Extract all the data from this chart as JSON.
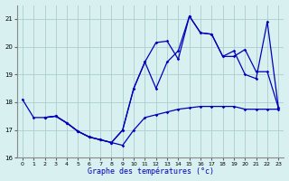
{
  "xlabel": "Graphe des températures (°c)",
  "background_color": "#d8f0f0",
  "grid_color": "#aacece",
  "line_color": "#0000bb",
  "xlim": [
    -0.5,
    23.5
  ],
  "ylim": [
    16,
    21.5
  ],
  "yticks": [
    16,
    17,
    18,
    19,
    20,
    21
  ],
  "xticks": [
    0,
    1,
    2,
    3,
    4,
    5,
    6,
    7,
    8,
    9,
    10,
    11,
    12,
    13,
    14,
    15,
    16,
    17,
    18,
    19,
    20,
    21,
    22,
    23
  ],
  "s1_x": [
    0,
    1,
    2,
    3,
    4,
    5,
    6,
    7,
    8,
    9,
    10,
    11,
    12,
    13,
    14,
    15,
    16,
    17,
    18,
    19,
    20,
    21,
    22,
    23
  ],
  "s1_y": [
    18.1,
    17.45,
    17.45,
    17.5,
    17.25,
    16.95,
    16.75,
    16.65,
    16.55,
    16.45,
    17.0,
    17.45,
    17.55,
    17.65,
    17.75,
    17.8,
    17.85,
    17.85,
    17.85,
    17.85,
    17.75,
    17.75,
    17.75,
    17.75
  ],
  "s2_x": [
    2,
    3,
    4,
    5,
    6,
    7,
    8,
    9,
    10,
    11,
    12,
    13,
    14,
    15,
    16,
    17,
    18,
    19,
    20,
    21,
    22,
    23
  ],
  "s2_y": [
    17.45,
    17.5,
    17.25,
    16.95,
    16.75,
    16.65,
    16.55,
    17.0,
    18.5,
    19.45,
    18.5,
    19.45,
    19.85,
    21.1,
    20.5,
    20.45,
    19.65,
    19.65,
    19.9,
    19.1,
    19.1,
    17.8
  ],
  "s3_x": [
    2,
    3,
    4,
    5,
    6,
    7,
    8,
    9,
    10,
    11,
    12,
    13,
    14,
    15,
    16,
    17,
    18,
    19,
    20,
    21,
    22,
    23
  ],
  "s3_y": [
    17.45,
    17.5,
    17.25,
    16.95,
    16.75,
    16.65,
    16.55,
    17.0,
    18.5,
    19.45,
    20.15,
    20.2,
    19.55,
    21.1,
    20.5,
    20.45,
    19.65,
    19.85,
    19.0,
    18.85,
    20.9,
    17.8
  ]
}
